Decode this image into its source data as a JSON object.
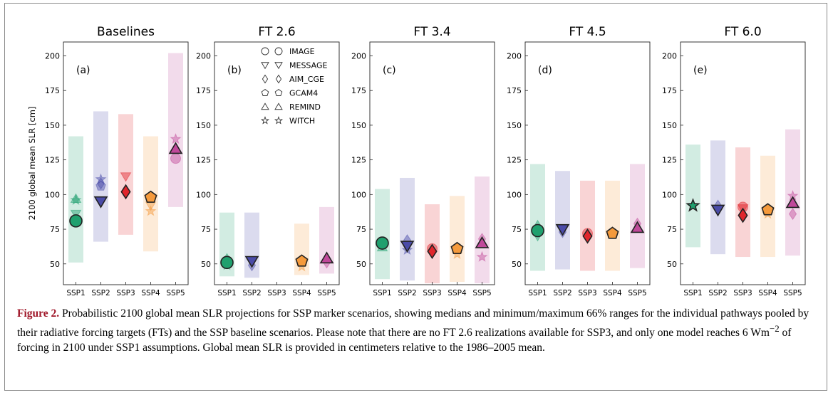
{
  "figure": {
    "caption_label": "Figure 2.",
    "caption_text": " Probabilistic 2100 global mean SLR projections for SSP marker scenarios, showing medians and minimum/maximum 66% ranges for the individual pathways pooled by their radiative forcing targets (FTs) and the SSP baseline scenarios. Please note that there are no FT 2.6 realizations available for SSP3, and only one model reaches 6 Wm",
    "caption_sup": "−2",
    "caption_tail": " of forcing in 2100 under SSP1 assumptions. Global mean SLR is provided in centimeters relative to the 1986–2005 mean."
  },
  "colors": {
    "SSP1": "#1fa06e",
    "SSP2": "#4a4ba8",
    "SSP3": "#e0262c",
    "SSP4": "#f59a3c",
    "SSP5": "#c0499a"
  },
  "legend": [
    {
      "marker": "circle",
      "label": "IMAGE"
    },
    {
      "marker": "triangle-down",
      "label": "MESSAGE"
    },
    {
      "marker": "diamond",
      "label": "AIM_CGE"
    },
    {
      "marker": "pentagon",
      "label": "GCAM4"
    },
    {
      "marker": "triangle-up",
      "label": "REMIND"
    },
    {
      "marker": "star",
      "label": "WITCH"
    }
  ],
  "chart_data": [
    {
      "type": "scatter",
      "title": "Baselines",
      "panel": "(a)",
      "ylabel": "2100 global mean SLR [cm]",
      "categories": [
        "SSP1",
        "SSP2",
        "SSP3",
        "SSP4",
        "SSP5"
      ],
      "ylim": [
        35,
        210
      ],
      "yticks": [
        50,
        75,
        100,
        125,
        150,
        175,
        200
      ],
      "ranges": [
        {
          "ssp": "SSP1",
          "min": 51,
          "max": 142
        },
        {
          "ssp": "SSP2",
          "min": 66,
          "max": 160
        },
        {
          "ssp": "SSP3",
          "min": 71,
          "max": 158
        },
        {
          "ssp": "SSP4",
          "min": 59,
          "max": 142
        },
        {
          "ssp": "SSP5",
          "min": 91,
          "max": 202
        }
      ],
      "points": [
        {
          "ssp": "SSP1",
          "marker": "circle",
          "y": 81,
          "median": true
        },
        {
          "ssp": "SSP1",
          "marker": "triangle-down",
          "y": 86
        },
        {
          "ssp": "SSP1",
          "marker": "star",
          "y": 96
        },
        {
          "ssp": "SSP1",
          "marker": "triangle-up",
          "y": 97
        },
        {
          "ssp": "SSP2",
          "marker": "triangle-down",
          "y": 95,
          "median": true
        },
        {
          "ssp": "SSP2",
          "marker": "diamond",
          "y": 108
        },
        {
          "ssp": "SSP2",
          "marker": "star",
          "y": 111
        },
        {
          "ssp": "SSP2",
          "marker": "pentagon",
          "y": 106
        },
        {
          "ssp": "SSP3",
          "marker": "diamond",
          "y": 102,
          "median": true
        },
        {
          "ssp": "SSP3",
          "marker": "triangle-down",
          "y": 113
        },
        {
          "ssp": "SSP4",
          "marker": "pentagon",
          "y": 98,
          "median": true
        },
        {
          "ssp": "SSP4",
          "marker": "star",
          "y": 88
        },
        {
          "ssp": "SSP4",
          "marker": "triangle-down",
          "y": 92
        },
        {
          "ssp": "SSP5",
          "marker": "triangle-up",
          "y": 133,
          "median": true
        },
        {
          "ssp": "SSP5",
          "marker": "circle",
          "y": 126
        },
        {
          "ssp": "SSP5",
          "marker": "star",
          "y": 140
        }
      ]
    },
    {
      "type": "scatter",
      "title": "FT 2.6",
      "panel": "(b)",
      "categories": [
        "SSP1",
        "SSP2",
        "SSP3",
        "SSP4",
        "SSP5"
      ],
      "ylim": [
        35,
        210
      ],
      "yticks": [
        50,
        75,
        100,
        125,
        150,
        175,
        200
      ],
      "ranges": [
        {
          "ssp": "SSP1",
          "min": 41,
          "max": 87
        },
        {
          "ssp": "SSP2",
          "min": 40,
          "max": 87
        },
        {
          "ssp": "SSP4",
          "min": 42,
          "max": 79
        },
        {
          "ssp": "SSP5",
          "min": 43,
          "max": 91
        }
      ],
      "points": [
        {
          "ssp": "SSP1",
          "marker": "circle",
          "y": 51,
          "median": true
        },
        {
          "ssp": "SSP1",
          "marker": "triangle-up",
          "y": 54
        },
        {
          "ssp": "SSP1",
          "marker": "star",
          "y": 49
        },
        {
          "ssp": "SSP2",
          "marker": "triangle-down",
          "y": 52,
          "median": true
        },
        {
          "ssp": "SSP2",
          "marker": "diamond",
          "y": 49
        },
        {
          "ssp": "SSP4",
          "marker": "pentagon",
          "y": 52,
          "median": true
        },
        {
          "ssp": "SSP4",
          "marker": "star",
          "y": 48
        },
        {
          "ssp": "SSP5",
          "marker": "triangle-up",
          "y": 54,
          "median": true
        },
        {
          "ssp": "SSP5",
          "marker": "diamond",
          "y": 51
        }
      ]
    },
    {
      "type": "scatter",
      "title": "FT 3.4",
      "panel": "(c)",
      "categories": [
        "SSP1",
        "SSP2",
        "SSP3",
        "SSP4",
        "SSP5"
      ],
      "ylim": [
        35,
        210
      ],
      "yticks": [
        50,
        75,
        100,
        125,
        150,
        175,
        200
      ],
      "ranges": [
        {
          "ssp": "SSP1",
          "min": 39,
          "max": 104
        },
        {
          "ssp": "SSP2",
          "min": 38,
          "max": 112
        },
        {
          "ssp": "SSP3",
          "min": 36,
          "max": 93
        },
        {
          "ssp": "SSP4",
          "min": 37,
          "max": 99
        },
        {
          "ssp": "SSP5",
          "min": 36,
          "max": 113
        }
      ],
      "points": [
        {
          "ssp": "SSP1",
          "marker": "circle",
          "y": 65,
          "median": true
        },
        {
          "ssp": "SSP1",
          "marker": "triangle-up",
          "y": 62
        },
        {
          "ssp": "SSP2",
          "marker": "triangle-down",
          "y": 63,
          "median": true
        },
        {
          "ssp": "SSP2",
          "marker": "diamond",
          "y": 67
        },
        {
          "ssp": "SSP2",
          "marker": "star",
          "y": 60
        },
        {
          "ssp": "SSP3",
          "marker": "diamond",
          "y": 59,
          "median": true
        },
        {
          "ssp": "SSP3",
          "marker": "circle",
          "y": 61
        },
        {
          "ssp": "SSP4",
          "marker": "pentagon",
          "y": 61,
          "median": true
        },
        {
          "ssp": "SSP4",
          "marker": "star",
          "y": 57
        },
        {
          "ssp": "SSP5",
          "marker": "triangle-up",
          "y": 65,
          "median": true
        },
        {
          "ssp": "SSP5",
          "marker": "diamond",
          "y": 68
        },
        {
          "ssp": "SSP5",
          "marker": "star",
          "y": 55
        }
      ]
    },
    {
      "type": "scatter",
      "title": "FT 4.5",
      "panel": "(d)",
      "categories": [
        "SSP1",
        "SSP2",
        "SSP3",
        "SSP4",
        "SSP5"
      ],
      "ylim": [
        35,
        210
      ],
      "yticks": [
        50,
        75,
        100,
        125,
        150,
        175,
        200
      ],
      "ranges": [
        {
          "ssp": "SSP1",
          "min": 45,
          "max": 122
        },
        {
          "ssp": "SSP2",
          "min": 46,
          "max": 117
        },
        {
          "ssp": "SSP3",
          "min": 45,
          "max": 110
        },
        {
          "ssp": "SSP4",
          "min": 45,
          "max": 110
        },
        {
          "ssp": "SSP5",
          "min": 47,
          "max": 122
        }
      ],
      "points": [
        {
          "ssp": "SSP1",
          "marker": "circle",
          "y": 74,
          "median": true
        },
        {
          "ssp": "SSP1",
          "marker": "triangle-up",
          "y": 78
        },
        {
          "ssp": "SSP1",
          "marker": "triangle-down",
          "y": 70
        },
        {
          "ssp": "SSP2",
          "marker": "triangle-down",
          "y": 75,
          "median": true
        },
        {
          "ssp": "SSP2",
          "marker": "diamond",
          "y": 73
        },
        {
          "ssp": "SSP3",
          "marker": "diamond",
          "y": 70,
          "median": true
        },
        {
          "ssp": "SSP3",
          "marker": "circle",
          "y": 72
        },
        {
          "ssp": "SSP4",
          "marker": "pentagon",
          "y": 72,
          "median": true
        },
        {
          "ssp": "SSP5",
          "marker": "triangle-up",
          "y": 76,
          "median": true
        },
        {
          "ssp": "SSP5",
          "marker": "diamond",
          "y": 79
        }
      ]
    },
    {
      "type": "scatter",
      "title": "FT 6.0",
      "panel": "(e)",
      "categories": [
        "SSP1",
        "SSP2",
        "SSP3",
        "SSP4",
        "SSP5"
      ],
      "ylim": [
        35,
        210
      ],
      "yticks": [
        50,
        75,
        100,
        125,
        150,
        175,
        200
      ],
      "ranges": [
        {
          "ssp": "SSP1",
          "min": 62,
          "max": 136
        },
        {
          "ssp": "SSP2",
          "min": 57,
          "max": 139
        },
        {
          "ssp": "SSP3",
          "min": 55,
          "max": 134
        },
        {
          "ssp": "SSP4",
          "min": 55,
          "max": 128
        },
        {
          "ssp": "SSP5",
          "min": 56,
          "max": 147
        }
      ],
      "points": [
        {
          "ssp": "SSP1",
          "marker": "star",
          "y": 92,
          "median": true
        },
        {
          "ssp": "SSP2",
          "marker": "triangle-down",
          "y": 89,
          "median": true
        },
        {
          "ssp": "SSP2",
          "marker": "diamond",
          "y": 92
        },
        {
          "ssp": "SSP3",
          "marker": "diamond",
          "y": 85,
          "median": true
        },
        {
          "ssp": "SSP3",
          "marker": "circle",
          "y": 91
        },
        {
          "ssp": "SSP3",
          "marker": "triangle-down",
          "y": 90
        },
        {
          "ssp": "SSP4",
          "marker": "pentagon",
          "y": 89,
          "median": true
        },
        {
          "ssp": "SSP4",
          "marker": "star",
          "y": 86
        },
        {
          "ssp": "SSP5",
          "marker": "triangle-up",
          "y": 94,
          "median": true
        },
        {
          "ssp": "SSP5",
          "marker": "diamond",
          "y": 86
        },
        {
          "ssp": "SSP5",
          "marker": "star",
          "y": 99
        }
      ]
    }
  ]
}
